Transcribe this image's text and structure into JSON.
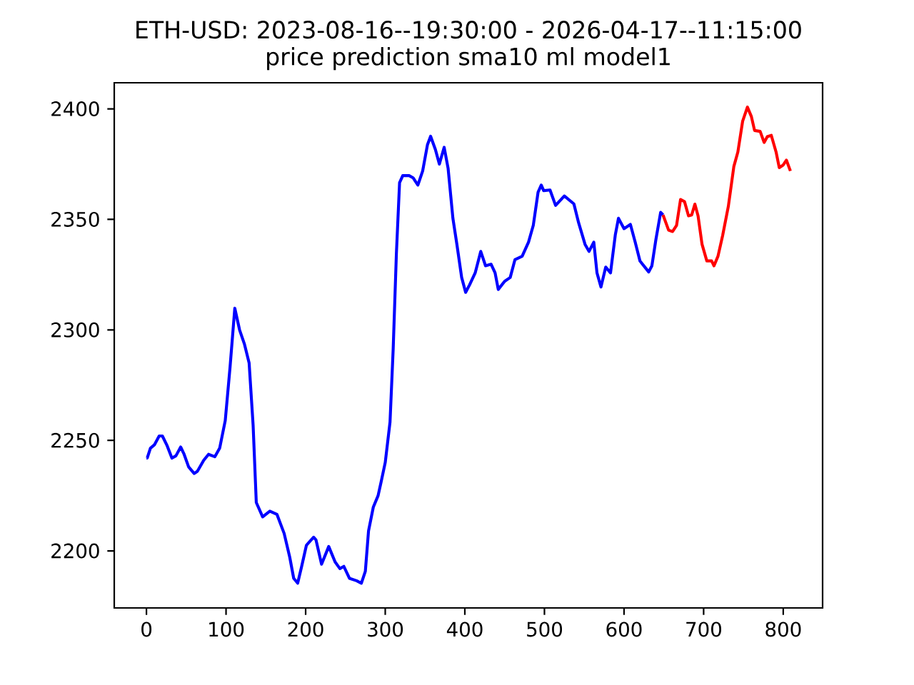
{
  "chart_data": {
    "type": "line",
    "title": "ETH-USD: 2023-08-16--19:30:00 - 2026-04-17--11:15:00",
    "subtitle": "price prediction sma10 ml model1",
    "xlim": [
      -40.45,
      849.45
    ],
    "ylim": [
      2174.2,
      2411.8
    ],
    "xticks": [
      0,
      100,
      200,
      300,
      400,
      500,
      600,
      700,
      800
    ],
    "yticks": [
      2200,
      2250,
      2300,
      2350,
      2400
    ],
    "series": [
      {
        "color": "#0000ff",
        "x": [
          0,
          1,
          5,
          10,
          16,
          20,
          26,
          32,
          37,
          43,
          47,
          53,
          60,
          64,
          72,
          78,
          86,
          92,
          99,
          105,
          111,
          117,
          123,
          129,
          134,
          138,
          146,
          155,
          164,
          173,
          180,
          185,
          190,
          195,
          201,
          210,
          213,
          220,
          229,
          237,
          243,
          248,
          255,
          264,
          270,
          275,
          279,
          285,
          291,
          295,
          300,
          306,
          310,
          314,
          318,
          322,
          330,
          335,
          341,
          347,
          353,
          357,
          363,
          368,
          374,
          379,
          385,
          390,
          396,
          401,
          406,
          413,
          420,
          426,
          433,
          438,
          442,
          450,
          457,
          463,
          472,
          480,
          486,
          492,
          496,
          499,
          507,
          514,
          525,
          537,
          543,
          551,
          556,
          562,
          566,
          571,
          577,
          583,
          589,
          593,
          600,
          608,
          614,
          620,
          631,
          635,
          640,
          646,
          649
        ],
        "values": [
          2242,
          2242,
          2246.5,
          2248,
          2252,
          2252,
          2247.6,
          2242,
          2243,
          2247,
          2244,
          2238,
          2235,
          2236,
          2241,
          2243.7,
          2242.6,
          2246.5,
          2259,
          2283,
          2309.8,
          2300,
          2293.7,
          2285,
          2257,
          2221.9,
          2215.4,
          2218,
          2216.5,
          2207.9,
          2197.2,
          2187.6,
          2185.4,
          2193,
          2202.6,
          2206.2,
          2205,
          2194,
          2202,
          2195,
          2192,
          2193,
          2187.6,
          2186.5,
          2185.4,
          2190.8,
          2209,
          2219.8,
          2225,
          2231.5,
          2240,
          2258.3,
          2291.5,
          2334.4,
          2366.6,
          2369.8,
          2369.8,
          2368.8,
          2365.5,
          2371.9,
          2383.7,
          2387.6,
          2381.6,
          2375,
          2382.6,
          2373,
          2350.5,
          2338.7,
          2323.7,
          2317,
          2320.4,
          2325.8,
          2335.5,
          2329,
          2329.7,
          2325.8,
          2318.3,
          2322,
          2323.7,
          2331.8,
          2333.3,
          2339.7,
          2347.3,
          2362.3,
          2365.5,
          2363,
          2363.3,
          2356.3,
          2360.6,
          2357,
          2348.4,
          2338.7,
          2335.5,
          2339.7,
          2325.8,
          2319.4,
          2328.4,
          2325.8,
          2342.9,
          2350.5,
          2345.8,
          2347.7,
          2339.7,
          2331.2,
          2326.2,
          2329,
          2340.8,
          2353.2,
          2352
        ]
      },
      {
        "color": "#ff0000",
        "x": [
          649,
          656,
          661,
          666,
          671,
          676,
          681,
          685,
          689,
          693,
          698,
          704,
          710,
          713,
          718,
          724,
          731,
          738,
          743,
          749,
          755,
          760,
          764,
          771,
          776,
          780,
          785,
          791,
          795,
          800,
          804,
          809
        ],
        "values": [
          2352,
          2345.1,
          2344.5,
          2347.3,
          2359,
          2358,
          2351.6,
          2352,
          2356.9,
          2351.6,
          2338.7,
          2331.2,
          2331.2,
          2329,
          2333.3,
          2342.9,
          2355.8,
          2374,
          2380.5,
          2394.4,
          2400.8,
          2396.5,
          2390.2,
          2389.8,
          2384.8,
          2387.4,
          2388,
          2380.5,
          2373.4,
          2374.6,
          2376.8,
          2371.9
        ]
      }
    ]
  }
}
